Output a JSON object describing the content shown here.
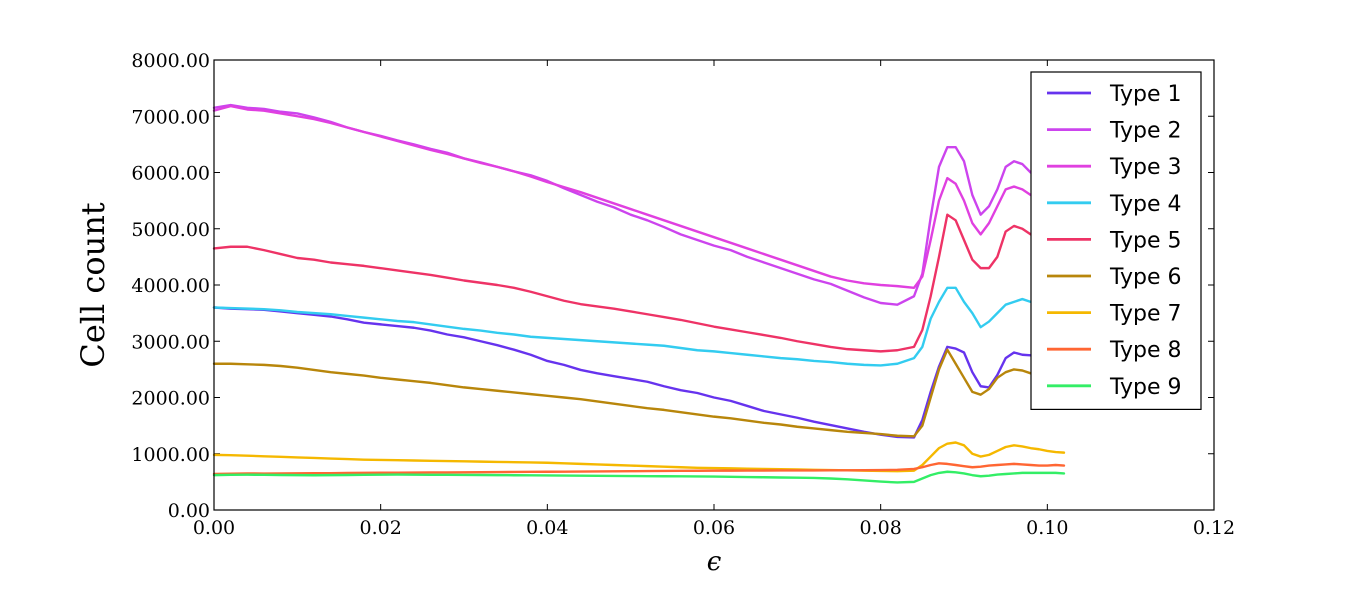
{
  "chart_data": {
    "type": "line",
    "title": "",
    "xlabel": "ϵ",
    "ylabel": "Cell count",
    "xlim": [
      0.0,
      0.12
    ],
    "ylim": [
      0,
      8000
    ],
    "x_ticks": [
      "0.00",
      "0.02",
      "0.04",
      "0.06",
      "0.08",
      "0.10",
      "0.12"
    ],
    "y_ticks": [
      "0.00",
      "1000.00",
      "2000.00",
      "3000.00",
      "4000.00",
      "5000.00",
      "6000.00",
      "7000.00",
      "8000.00"
    ],
    "grid": false,
    "legend_position": "top-right",
    "x": [
      0.0,
      0.002,
      0.004,
      0.006,
      0.008,
      0.01,
      0.012,
      0.014,
      0.016,
      0.018,
      0.02,
      0.022,
      0.024,
      0.026,
      0.028,
      0.03,
      0.032,
      0.034,
      0.036,
      0.038,
      0.04,
      0.042,
      0.044,
      0.046,
      0.048,
      0.05,
      0.052,
      0.054,
      0.056,
      0.058,
      0.06,
      0.062,
      0.064,
      0.066,
      0.068,
      0.07,
      0.072,
      0.074,
      0.076,
      0.078,
      0.08,
      0.082,
      0.084,
      0.085,
      0.086,
      0.087,
      0.088,
      0.089,
      0.09,
      0.091,
      0.092,
      0.093,
      0.094,
      0.095,
      0.096,
      0.097,
      0.098,
      0.099,
      0.1,
      0.101,
      0.102
    ],
    "series": [
      {
        "name": "Type 1",
        "color": "#6633ee",
        "values": [
          3600,
          3580,
          3570,
          3560,
          3530,
          3500,
          3470,
          3440,
          3390,
          3330,
          3300,
          3270,
          3240,
          3190,
          3120,
          3070,
          3000,
          2930,
          2850,
          2760,
          2650,
          2580,
          2490,
          2430,
          2380,
          2330,
          2280,
          2200,
          2130,
          2080,
          2000,
          1940,
          1850,
          1760,
          1700,
          1640,
          1570,
          1510,
          1450,
          1390,
          1340,
          1300,
          1290,
          1600,
          2100,
          2550,
          2900,
          2870,
          2800,
          2450,
          2200,
          2180,
          2400,
          2700,
          2800,
          2760,
          2750,
          2800,
          2850,
          2830,
          2850
        ]
      },
      {
        "name": "Type 2",
        "color": "#cc44ee",
        "values": [
          7150,
          7200,
          7150,
          7130,
          7080,
          7050,
          6980,
          6900,
          6800,
          6720,
          6650,
          6570,
          6500,
          6420,
          6350,
          6250,
          6180,
          6100,
          6020,
          5950,
          5850,
          5720,
          5600,
          5480,
          5380,
          5250,
          5150,
          5030,
          4900,
          4800,
          4700,
          4620,
          4500,
          4400,
          4300,
          4200,
          4100,
          4020,
          3900,
          3780,
          3680,
          3650,
          3800,
          4200,
          5200,
          6100,
          6450,
          6450,
          6200,
          5600,
          5250,
          5400,
          5700,
          6100,
          6200,
          6150,
          6000,
          5900,
          5850,
          5850,
          5800
        ]
      },
      {
        "name": "Type 3",
        "color": "#e040e0",
        "values": [
          7100,
          7180,
          7120,
          7100,
          7050,
          7000,
          6950,
          6880,
          6800,
          6720,
          6640,
          6560,
          6480,
          6400,
          6330,
          6250,
          6170,
          6100,
          6020,
          5930,
          5830,
          5740,
          5650,
          5550,
          5450,
          5350,
          5250,
          5150,
          5050,
          4950,
          4850,
          4750,
          4650,
          4550,
          4450,
          4350,
          4250,
          4150,
          4080,
          4030,
          4000,
          3980,
          3950,
          4150,
          4800,
          5500,
          5900,
          5800,
          5500,
          5100,
          4900,
          5100,
          5400,
          5700,
          5750,
          5700,
          5600,
          5600,
          5650,
          5650,
          5600
        ]
      },
      {
        "name": "Type 4",
        "color": "#33ccf0",
        "values": [
          3600,
          3590,
          3580,
          3570,
          3550,
          3520,
          3500,
          3480,
          3450,
          3420,
          3390,
          3360,
          3340,
          3300,
          3260,
          3220,
          3190,
          3150,
          3120,
          3080,
          3060,
          3040,
          3020,
          3000,
          2980,
          2960,
          2940,
          2920,
          2880,
          2840,
          2820,
          2790,
          2760,
          2730,
          2700,
          2680,
          2650,
          2630,
          2600,
          2580,
          2570,
          2600,
          2700,
          2900,
          3400,
          3700,
          3950,
          3950,
          3700,
          3500,
          3250,
          3350,
          3500,
          3650,
          3700,
          3750,
          3700,
          3650,
          3700,
          3700,
          3650
        ]
      },
      {
        "name": "Type 5",
        "color": "#ee3366",
        "values": [
          4650,
          4680,
          4680,
          4620,
          4550,
          4480,
          4450,
          4400,
          4370,
          4340,
          4300,
          4260,
          4220,
          4180,
          4130,
          4080,
          4040,
          4000,
          3950,
          3880,
          3800,
          3720,
          3660,
          3620,
          3580,
          3530,
          3480,
          3430,
          3380,
          3320,
          3260,
          3210,
          3160,
          3110,
          3060,
          3000,
          2950,
          2900,
          2860,
          2840,
          2820,
          2840,
          2900,
          3200,
          3800,
          4500,
          5250,
          5150,
          4800,
          4450,
          4300,
          4300,
          4500,
          4950,
          5050,
          5000,
          4900,
          4850,
          4950,
          5000,
          4950
        ]
      },
      {
        "name": "Type 6",
        "color": "#b8860b",
        "values": [
          2600,
          2600,
          2590,
          2580,
          2560,
          2530,
          2490,
          2450,
          2420,
          2390,
          2350,
          2320,
          2290,
          2260,
          2220,
          2180,
          2150,
          2120,
          2090,
          2060,
          2030,
          2000,
          1970,
          1930,
          1890,
          1850,
          1810,
          1780,
          1740,
          1700,
          1660,
          1630,
          1590,
          1550,
          1520,
          1480,
          1450,
          1420,
          1390,
          1370,
          1350,
          1320,
          1310,
          1500,
          2000,
          2500,
          2850,
          2600,
          2350,
          2100,
          2050,
          2150,
          2350,
          2450,
          2500,
          2480,
          2430,
          2400,
          2420,
          2450,
          2430
        ]
      },
      {
        "name": "Type 7",
        "color": "#f5b800",
        "values": [
          980,
          975,
          965,
          955,
          945,
          935,
          925,
          915,
          905,
          895,
          890,
          885,
          880,
          875,
          870,
          865,
          860,
          855,
          850,
          845,
          840,
          830,
          820,
          810,
          800,
          790,
          780,
          770,
          760,
          750,
          745,
          740,
          735,
          730,
          725,
          720,
          715,
          710,
          705,
          700,
          695,
          690,
          700,
          800,
          950,
          1100,
          1180,
          1200,
          1150,
          1000,
          950,
          980,
          1050,
          1120,
          1150,
          1130,
          1100,
          1080,
          1050,
          1030,
          1020
        ]
      },
      {
        "name": "Type 8",
        "color": "#ff6633",
        "values": [
          640,
          645,
          650,
          648,
          650,
          652,
          655,
          655,
          658,
          660,
          662,
          664,
          665,
          667,
          668,
          670,
          672,
          675,
          676,
          678,
          680,
          682,
          684,
          686,
          688,
          690,
          692,
          694,
          696,
          698,
          700,
          700,
          701,
          702,
          703,
          703,
          704,
          705,
          706,
          708,
          710,
          715,
          730,
          760,
          800,
          830,
          820,
          800,
          780,
          760,
          770,
          790,
          800,
          810,
          820,
          810,
          800,
          790,
          790,
          800,
          790
        ]
      },
      {
        "name": "Type 9",
        "color": "#33ee66",
        "values": [
          620,
          625,
          628,
          625,
          622,
          620,
          618,
          620,
          622,
          625,
          628,
          630,
          628,
          626,
          625,
          624,
          622,
          620,
          618,
          616,
          615,
          612,
          610,
          608,
          606,
          604,
          602,
          600,
          598,
          596,
          594,
          590,
          586,
          582,
          578,
          574,
          570,
          560,
          545,
          525,
          505,
          490,
          500,
          560,
          620,
          660,
          680,
          670,
          650,
          620,
          600,
          610,
          630,
          640,
          650,
          660,
          660,
          660,
          660,
          660,
          650
        ]
      }
    ]
  }
}
